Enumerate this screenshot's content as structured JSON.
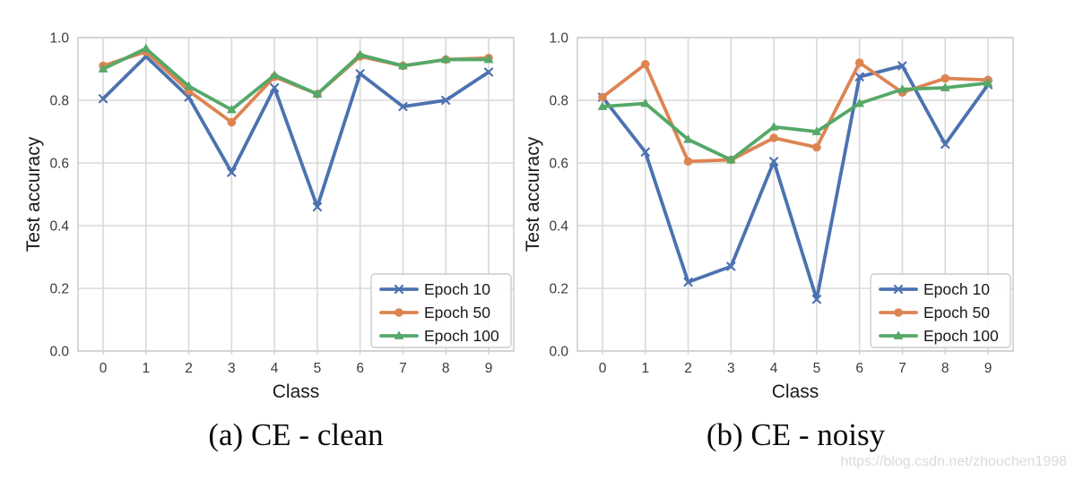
{
  "watermark": "https://blog.csdn.net/zhouchen1998",
  "colors": {
    "epoch10_blue": "#4C72B0",
    "epoch50_orange": "#DD8452",
    "epoch100_green": "#55A868",
    "grid": "#D9D9D9",
    "spine": "#CFCFCF",
    "legend_border": "#CCCCCC",
    "tick_text": "#3B3B3B",
    "watermark_gray": "#DADADA"
  },
  "chart_data": [
    {
      "type": "line",
      "title": "(a) CE - clean",
      "xlabel": "Class",
      "ylabel": "Test accuracy",
      "categories": [
        "0",
        "1",
        "2",
        "3",
        "4",
        "5",
        "6",
        "7",
        "8",
        "9"
      ],
      "ylim": [
        0.0,
        1.0
      ],
      "yticks": [
        "0.0",
        "0.2",
        "0.4",
        "0.6",
        "0.8",
        "1.0"
      ],
      "grid": true,
      "legend_position": "lower right",
      "series": [
        {
          "name": "Epoch 10",
          "marker": "x",
          "color": "#4C72B0",
          "values": [
            0.805,
            0.94,
            0.81,
            0.57,
            0.84,
            0.46,
            0.885,
            0.78,
            0.8,
            0.89
          ]
        },
        {
          "name": "Epoch 50",
          "marker": "circle",
          "color": "#DD8452",
          "values": [
            0.91,
            0.955,
            0.83,
            0.73,
            0.875,
            0.82,
            0.94,
            0.91,
            0.93,
            0.935
          ]
        },
        {
          "name": "Epoch 100",
          "marker": "triangle",
          "color": "#55A868",
          "values": [
            0.9,
            0.965,
            0.845,
            0.77,
            0.88,
            0.82,
            0.945,
            0.91,
            0.93,
            0.93
          ]
        }
      ]
    },
    {
      "type": "line",
      "title": "(b) CE - noisy",
      "xlabel": "Class",
      "ylabel": "Test accuracy",
      "categories": [
        "0",
        "1",
        "2",
        "3",
        "4",
        "5",
        "6",
        "7",
        "8",
        "9"
      ],
      "ylim": [
        0.0,
        1.0
      ],
      "yticks": [
        "0.0",
        "0.2",
        "0.4",
        "0.6",
        "0.8",
        "1.0"
      ],
      "grid": true,
      "legend_position": "lower right",
      "series": [
        {
          "name": "Epoch 10",
          "marker": "x",
          "color": "#4C72B0",
          "values": [
            0.81,
            0.635,
            0.22,
            0.27,
            0.605,
            0.165,
            0.875,
            0.91,
            0.66,
            0.85
          ]
        },
        {
          "name": "Epoch 50",
          "marker": "circle",
          "color": "#DD8452",
          "values": [
            0.81,
            0.915,
            0.605,
            0.61,
            0.68,
            0.65,
            0.92,
            0.825,
            0.87,
            0.865
          ]
        },
        {
          "name": "Epoch 100",
          "marker": "triangle",
          "color": "#55A868",
          "values": [
            0.78,
            0.79,
            0.675,
            0.61,
            0.715,
            0.7,
            0.79,
            0.835,
            0.84,
            0.855
          ]
        }
      ]
    }
  ]
}
